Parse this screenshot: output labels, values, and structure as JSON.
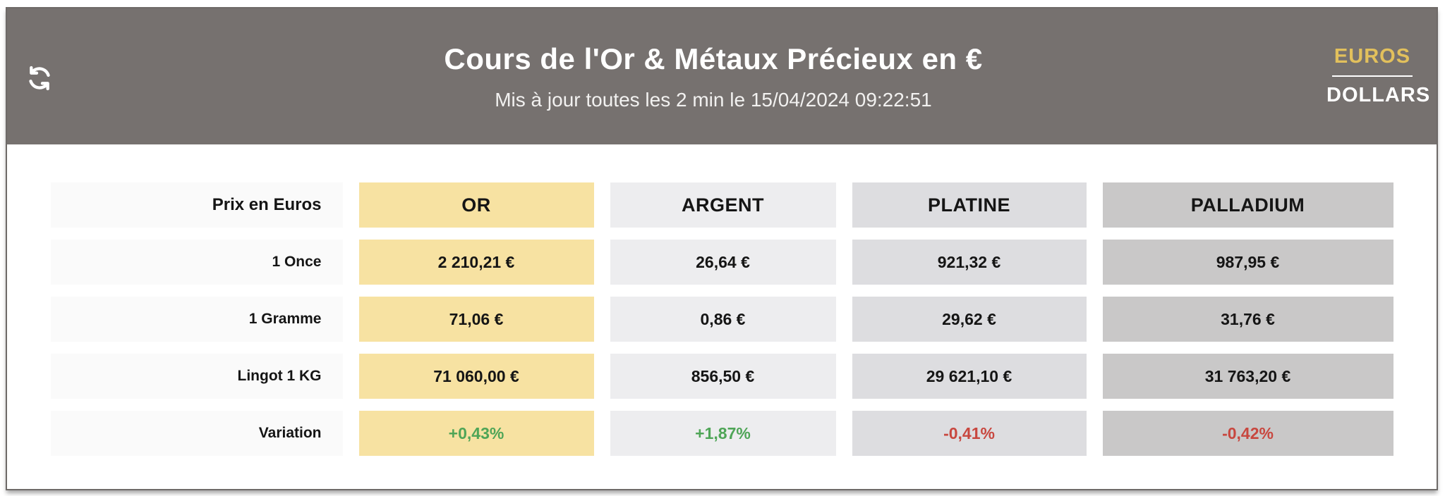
{
  "header": {
    "title": "Cours de l'Or & Métaux Précieux en €",
    "subtitle": "Mis à jour toutes les 2 min le 15/04/2024 09:22:51",
    "refresh_icon": "refresh-sync-icon",
    "currency_toggle": {
      "active": "EUROS",
      "inactive": "DOLLARS",
      "active_color": "#e2c05c",
      "inactive_color": "#ffffff"
    }
  },
  "table": {
    "corner_label": "Prix en Euros",
    "label_bg": "#fafafa",
    "columns": [
      {
        "label": "OR",
        "color": "#f7e2a2"
      },
      {
        "label": "ARGENT",
        "color": "#ededef"
      },
      {
        "label": "PLATINE",
        "color": "#dddde0"
      },
      {
        "label": "PALLADIUM",
        "color": "#c9c8c8"
      }
    ],
    "rows": [
      {
        "label": "1 Once",
        "type": "price",
        "values": [
          "2 210,21 €",
          "26,64 €",
          "921,32 €",
          "987,95 €"
        ]
      },
      {
        "label": "1 Gramme",
        "type": "price",
        "values": [
          "71,06 €",
          "0,86 €",
          "29,62 €",
          "31,76 €"
        ]
      },
      {
        "label": "Lingot 1 KG",
        "type": "price",
        "values": [
          "71 060,00 €",
          "856,50 €",
          "29 621,10 €",
          "31 763,20 €"
        ]
      },
      {
        "label": "Variation",
        "type": "variation",
        "values": [
          "+0,43%",
          "+1,87%",
          "-0,41%",
          "-0,42%"
        ]
      }
    ]
  },
  "colors": {
    "band_bg": "#76716f",
    "card_border": "#6e6a68",
    "positive": "#4fa557",
    "negative": "#c8473f"
  }
}
